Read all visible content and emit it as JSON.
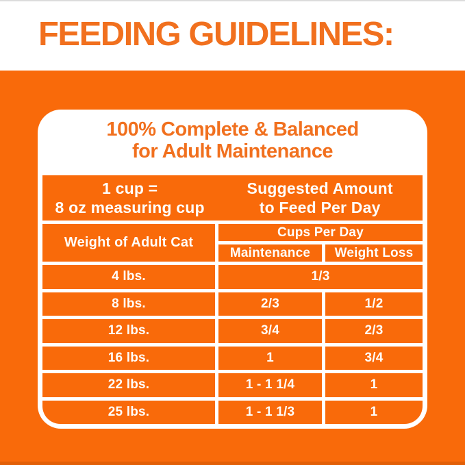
{
  "header": {
    "title": "FEEDING GUIDELINES:"
  },
  "card": {
    "title_line1": "100% Complete & Balanced",
    "title_line2": "for Adult Maintenance"
  },
  "table": {
    "cup_note": {
      "line1": "1 cup =",
      "line2": "8 oz measuring cup"
    },
    "suggested": {
      "line1": "Suggested Amount",
      "line2": "to Feed Per Day"
    },
    "weight_header": "Weight of Adult Cat",
    "cups_header": "Cups Per Day",
    "subcols": {
      "maintenance": "Maintenance",
      "weight_loss": "Weight Loss"
    },
    "rows": [
      {
        "weight": "4 lbs.",
        "cups_per_day": "1/3"
      },
      {
        "weight": "8 lbs.",
        "maintenance": "2/3",
        "weight_loss": "1/2"
      },
      {
        "weight": "12 lbs.",
        "maintenance": "3/4",
        "weight_loss": "2/3"
      },
      {
        "weight": "16 lbs.",
        "maintenance": "1",
        "weight_loss": "3/4"
      },
      {
        "weight": "22 lbs.",
        "maintenance": "1 - 1 1/4",
        "weight_loss": "1"
      },
      {
        "weight": "25 lbs.",
        "maintenance": "1 - 1 1/3",
        "weight_loss": "1"
      }
    ]
  },
  "colors": {
    "orange_background": "#F96A0A",
    "orange_heading_text": "#F1701E",
    "table_text": "#FFFDFA",
    "card_background": "#FFFFFF",
    "bottom_edge_shade": "#E25F07"
  }
}
